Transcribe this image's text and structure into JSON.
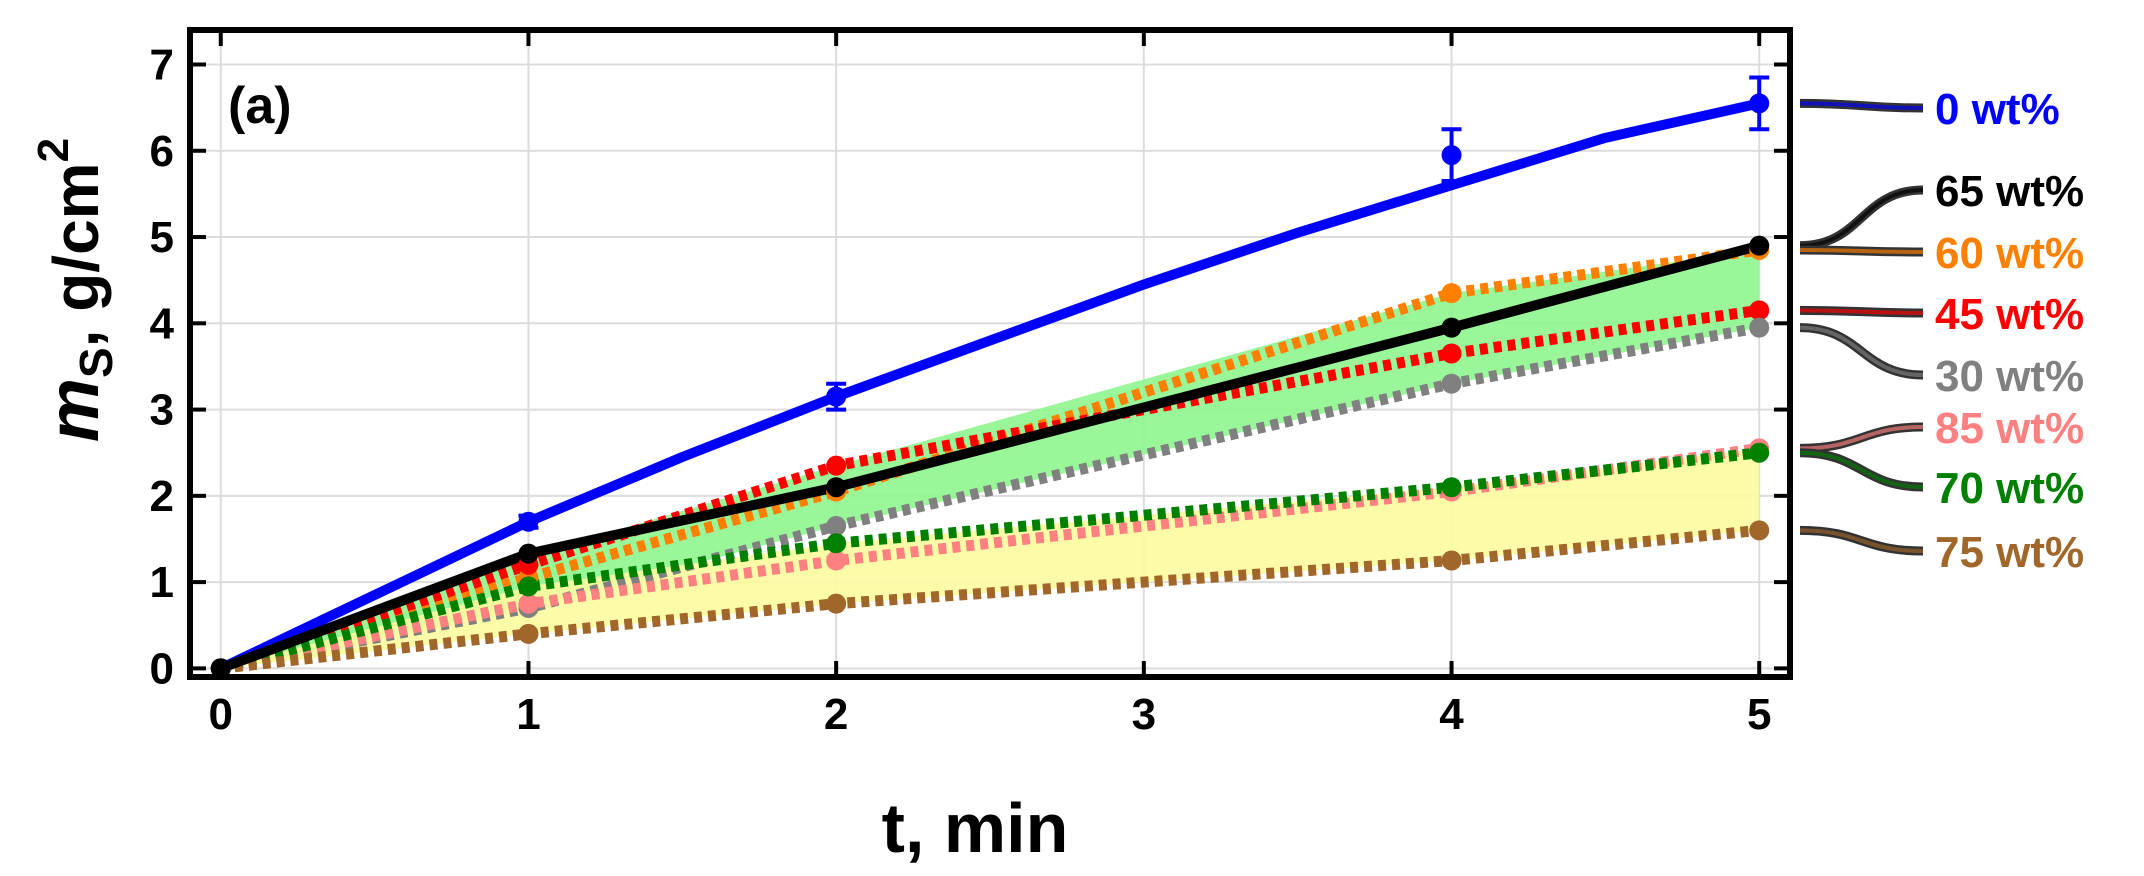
{
  "chart_data": {
    "type": "line",
    "panel_label": "(a)",
    "xlabel": "t, min",
    "ylabel_main": "m",
    "ylabel_sub": "S",
    "ylabel_rest": ", g/cm",
    "ylabel_sup": "2",
    "xlim": [
      -0.1,
      5.1
    ],
    "ylim": [
      -0.1,
      7.4
    ],
    "xticks": [
      0,
      1,
      2,
      3,
      4,
      5
    ],
    "yticks": [
      0,
      1,
      2,
      3,
      4,
      5,
      6,
      7
    ],
    "xtick_labels": [
      "0",
      "1",
      "2",
      "3",
      "4",
      "5"
    ],
    "ytick_labels": [
      "0",
      "1",
      "2",
      "3",
      "4",
      "5",
      "6",
      "7"
    ],
    "grid": true,
    "legend_position": "right",
    "shaded_bands": [
      {
        "color": "#8ef58e",
        "x": [
          0,
          1,
          2,
          4,
          5
        ],
        "lower": [
          0,
          0.7,
          1.65,
          3.3,
          3.95
        ],
        "upper": [
          0,
          1.3,
          2.35,
          4.35,
          4.85
        ]
      },
      {
        "color": "#fbfb9e",
        "x": [
          0,
          1,
          2,
          4,
          5
        ],
        "lower": [
          0,
          0.4,
          0.75,
          1.25,
          1.6
        ],
        "upper": [
          0,
          0.95,
          1.45,
          2.1,
          2.55
        ]
      }
    ],
    "series": [
      {
        "name": "0 wt%",
        "color": "#0000ff",
        "style": "solid",
        "x": [
          0,
          1,
          2,
          4,
          5
        ],
        "y": [
          0,
          1.7,
          3.15,
          5.95,
          6.55
        ],
        "yerr": [
          0,
          0.07,
          0.15,
          0.3,
          0.3
        ],
        "fit": [
          [
            0,
            0
          ],
          [
            0.5,
            0.85
          ],
          [
            1,
            1.7
          ],
          [
            1.5,
            2.45
          ],
          [
            2,
            3.15
          ],
          [
            2.5,
            3.8
          ],
          [
            3,
            4.45
          ],
          [
            3.5,
            5.05
          ],
          [
            4,
            5.6
          ],
          [
            4.5,
            6.15
          ],
          [
            5,
            6.55
          ]
        ]
      },
      {
        "name": "65 wt%",
        "color": "#000000",
        "style": "solid",
        "x": [
          0,
          1,
          2,
          4,
          5
        ],
        "y": [
          0,
          1.33,
          2.1,
          3.95,
          4.9
        ]
      },
      {
        "name": "60 wt%",
        "color": "#ff8000",
        "style": "dotted",
        "x": [
          0,
          1,
          2,
          4,
          5
        ],
        "y": [
          0,
          1.05,
          2.05,
          4.35,
          4.85
        ]
      },
      {
        "name": "45 wt%",
        "color": "#ff0000",
        "style": "dotted",
        "x": [
          0,
          1,
          2,
          4,
          5
        ],
        "y": [
          0,
          1.2,
          2.35,
          3.65,
          4.15
        ]
      },
      {
        "name": "30 wt%",
        "color": "#808080",
        "style": "dotted",
        "x": [
          0,
          1,
          2,
          4,
          5
        ],
        "y": [
          0,
          0.7,
          1.65,
          3.3,
          3.95
        ]
      },
      {
        "name": "85 wt%",
        "color": "#ff8080",
        "style": "dotted",
        "x": [
          0,
          1,
          2,
          4,
          5
        ],
        "y": [
          0,
          0.75,
          1.25,
          2.05,
          2.55
        ]
      },
      {
        "name": "70 wt%",
        "color": "#008000",
        "style": "dotted",
        "x": [
          0,
          1,
          2,
          4,
          5
        ],
        "y": [
          0,
          0.95,
          1.45,
          2.1,
          2.5
        ]
      },
      {
        "name": "75 wt%",
        "color": "#a0662a",
        "style": "dotted",
        "x": [
          0,
          1,
          2,
          4,
          5
        ],
        "y": [
          0,
          0.4,
          0.75,
          1.25,
          1.6
        ]
      }
    ]
  }
}
